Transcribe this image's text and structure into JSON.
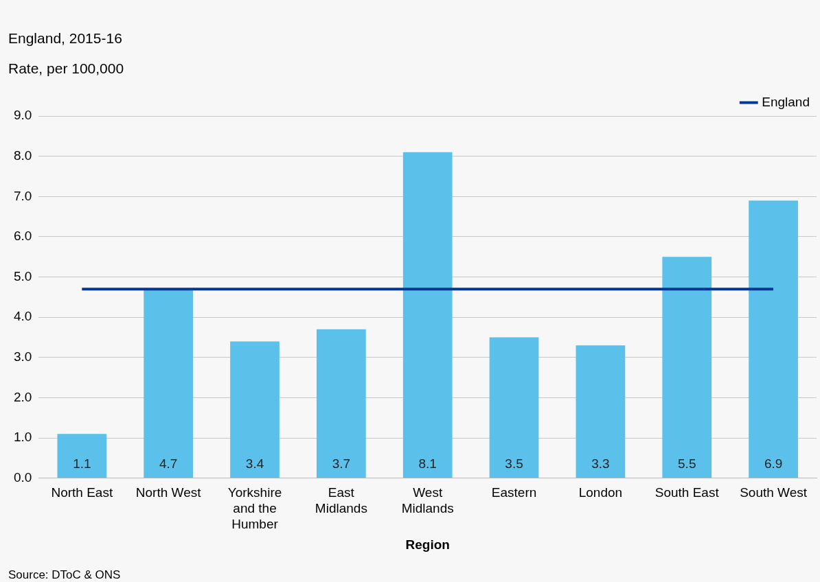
{
  "chart_data": {
    "type": "bar",
    "title": "England, 2015-16",
    "ylabel": "Rate, per 100,000",
    "xlabel": "Region",
    "categories": [
      "North East",
      "North West",
      "Yorkshire and the Humber",
      "East Midlands",
      "West Midlands",
      "Eastern",
      "London",
      "South East",
      "South West"
    ],
    "series": [
      {
        "color": "#5bc0ea",
        "values": [
          1.1,
          4.7,
          3.4,
          3.7,
          8.1,
          3.5,
          3.3,
          5.5,
          6.9
        ],
        "value_labels": [
          "1.1",
          "4.7",
          "3.4",
          "3.7",
          "8.1",
          "3.5",
          "3.3",
          "5.5",
          "6.9"
        ]
      },
      {
        "type": "line",
        "name": "England",
        "color": "#003893",
        "values": [
          4.7,
          4.7,
          4.7,
          4.7,
          4.7,
          4.7,
          4.7,
          4.7,
          4.7
        ]
      }
    ],
    "ylim": [
      0,
      9
    ],
    "yticks": [
      {
        "value": 0,
        "label": "0.0"
      },
      {
        "value": 1,
        "label": "1.0"
      },
      {
        "value": 2,
        "label": "2.0"
      },
      {
        "value": 3,
        "label": "3.0"
      },
      {
        "value": 4,
        "label": "4.0"
      },
      {
        "value": 5,
        "label": "5.0"
      },
      {
        "value": 6,
        "label": "6.0"
      },
      {
        "value": 7,
        "label": "7.0"
      },
      {
        "value": 8,
        "label": "8.0"
      },
      {
        "value": 9,
        "label": "9.0"
      }
    ],
    "grid": "y",
    "legend": "top right",
    "marker": "none",
    "annotations": [
      "Source: DToC & ONS"
    ]
  }
}
